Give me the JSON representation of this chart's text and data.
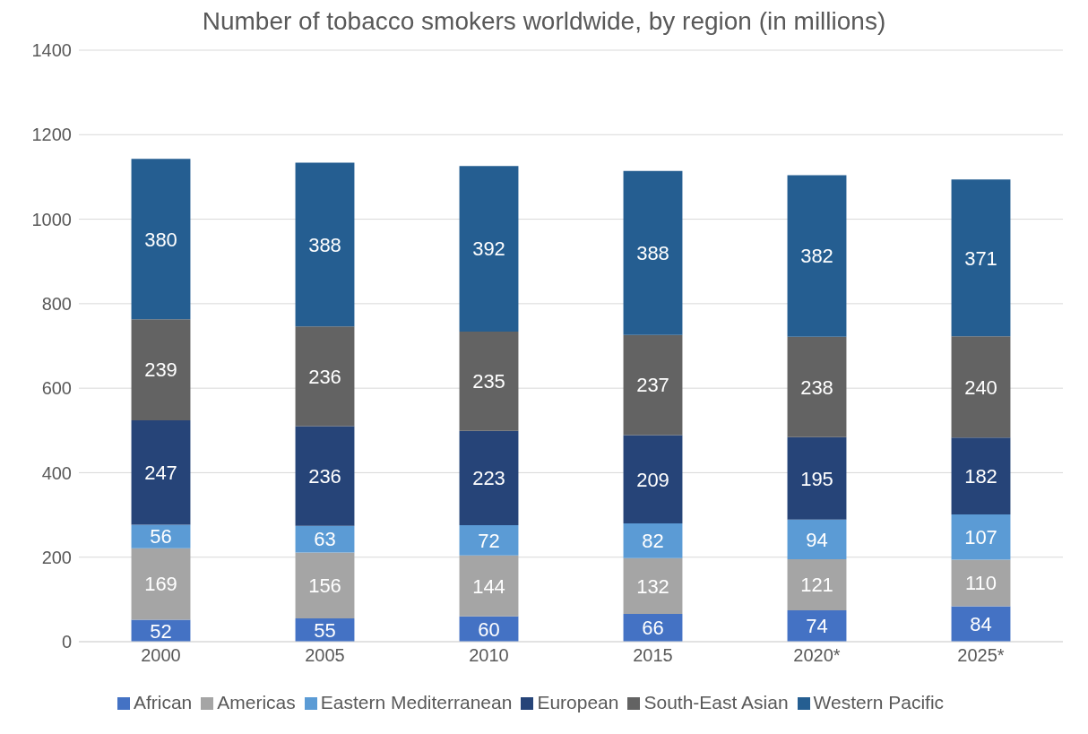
{
  "chart_data": {
    "type": "bar",
    "title": "Number of tobacco smokers worldwide, by region (in millions)",
    "categories": [
      "2000",
      "2005",
      "2010",
      "2015",
      "2020*",
      "2025*"
    ],
    "series": [
      {
        "name": "African",
        "color": "#4472c4",
        "values": [
          52,
          55,
          60,
          66,
          74,
          84
        ]
      },
      {
        "name": "Americas",
        "color": "#a5a5a5",
        "values": [
          169,
          156,
          144,
          132,
          121,
          110
        ]
      },
      {
        "name": "Eastern Mediterranean",
        "color": "#5b9bd5",
        "values": [
          56,
          63,
          72,
          82,
          94,
          107
        ]
      },
      {
        "name": "European",
        "color": "#264478",
        "values": [
          247,
          236,
          223,
          209,
          195,
          182
        ]
      },
      {
        "name": "South-East Asian",
        "color": "#636363",
        "values": [
          239,
          236,
          235,
          237,
          238,
          240
        ]
      },
      {
        "name": "Western Pacific",
        "color": "#255e91",
        "values": [
          380,
          388,
          392,
          388,
          382,
          371
        ]
      }
    ],
    "stacked": true,
    "data_labels": true,
    "ylim": [
      0,
      1400
    ],
    "yticks": [
      0,
      200,
      400,
      600,
      800,
      1000,
      1200,
      1400
    ],
    "grid": "y",
    "legend": "bottom"
  }
}
